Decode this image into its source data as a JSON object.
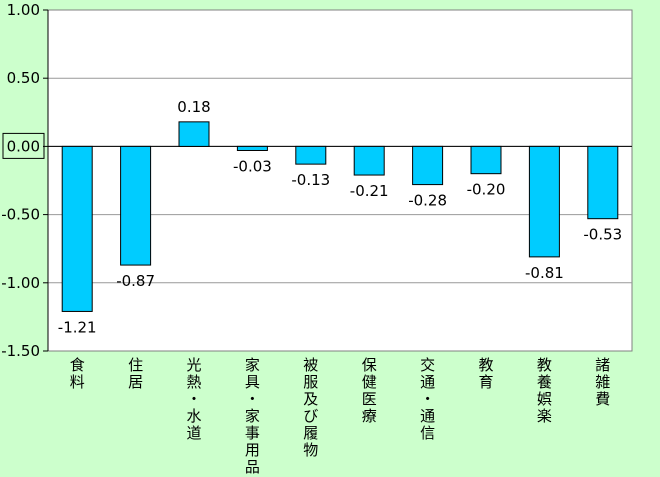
{
  "chart_data": {
    "type": "bar",
    "categories": [
      "食料",
      "住居",
      "光熱・水道",
      "家具・家事用品",
      "被服及び履物",
      "保健医療",
      "交通・通信",
      "教育",
      "教養娯楽",
      "諸雑費"
    ],
    "values": [
      -1.21,
      -0.87,
      0.18,
      -0.03,
      -0.13,
      -0.21,
      -0.28,
      -0.2,
      -0.81,
      -0.53
    ],
    "value_labels": [
      "-1.21",
      "-0.87",
      "0.18",
      "-0.03",
      "-0.13",
      "-0.21",
      "-0.28",
      "-0.20",
      "-0.81",
      "-0.53"
    ],
    "y_ticks": [
      "1.00",
      "0.50",
      "0.00",
      "-0.50",
      "-1.00",
      "-1.50"
    ],
    "y_tick_values": [
      1.0,
      0.5,
      0.0,
      -0.5,
      -1.0,
      -1.5
    ],
    "ylim": [
      -1.5,
      1.0
    ],
    "grid": true,
    "colors": {
      "background": "#ccffcc",
      "plot_area": "#ffffff",
      "bar_fill": "#00ccff",
      "bar_stroke": "#000000",
      "grid": "#999999"
    },
    "title": "",
    "xlabel": "",
    "ylabel": ""
  }
}
